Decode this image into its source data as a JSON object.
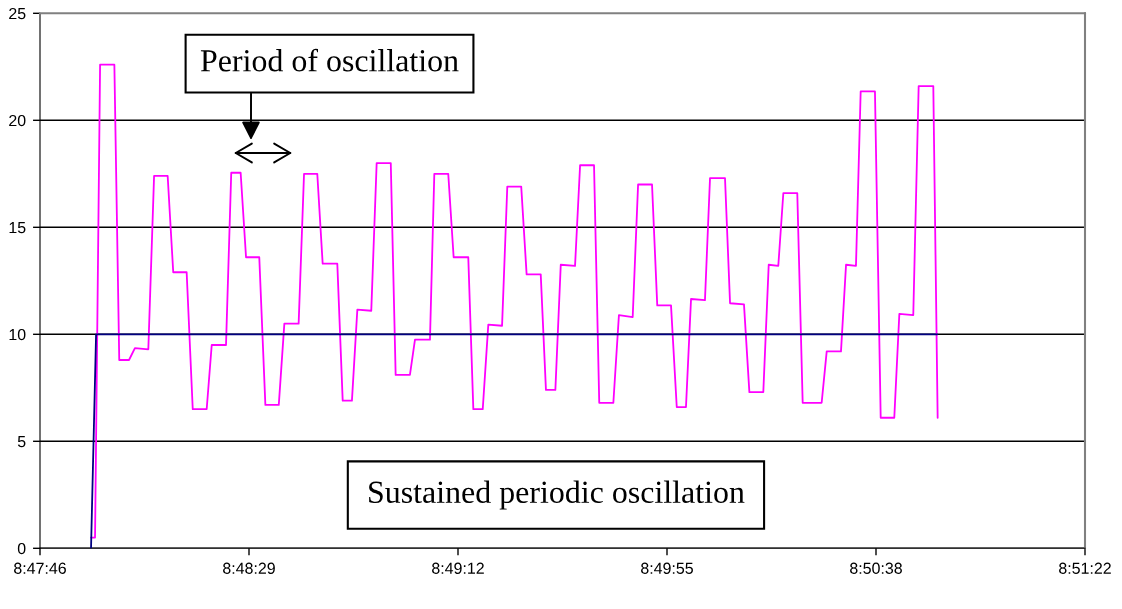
{
  "chart_data": {
    "type": "line",
    "series": [
      {
        "color": "#ff00ff",
        "x": [
          8.79893,
          8.79916,
          8.79945,
          8.80027,
          8.80055,
          8.80111,
          8.80145,
          8.80222,
          8.80255,
          8.80333,
          8.80365,
          8.80442,
          8.80477,
          8.80557,
          8.80586,
          8.80668,
          8.80698,
          8.80752,
          8.80783,
          8.80859,
          8.80894,
          8.80971,
          8.81003,
          8.81085,
          8.81116,
          8.81192,
          8.81223,
          8.81307,
          8.81338,
          8.81391,
          8.81422,
          8.81502,
          8.81533,
          8.81614,
          8.81642,
          8.81724,
          8.81753,
          8.81839,
          8.81864,
          8.81944,
          8.81975,
          8.82059,
          8.82088,
          8.82142,
          8.82174,
          8.82253,
          8.82283,
          8.82363,
          8.82394,
          8.82475,
          8.82505,
          8.82559,
          8.8259,
          8.82672,
          8.82701,
          8.82781,
          8.82811,
          8.82892,
          8.82924,
          8.83003,
          8.83034,
          8.83114,
          8.83144,
          8.83223,
          8.83256,
          8.83309,
          8.83338,
          8.83418,
          8.83447,
          8.83533,
          8.83562,
          8.83642,
          8.83673,
          8.83753,
          8.83784,
          8.83839,
          8.83868,
          8.83948,
          8.83979,
          8.84088,
          8.84117,
          8.84199,
          8.84228,
          8.84285,
          8.84312,
          8.84394,
          8.84427,
          8.84505,
          8.84534,
          8.84614,
          8.84645,
          8.84729,
          8.84754
        ],
        "values": [
          0.5,
          0.5,
          22.6,
          22.6,
          8.8,
          8.8,
          9.35,
          9.3,
          17.4,
          17.4,
          12.9,
          12.9,
          6.5,
          6.5,
          9.5,
          9.5,
          17.55,
          17.55,
          13.6,
          13.6,
          6.7,
          6.7,
          10.5,
          10.5,
          17.5,
          17.5,
          13.3,
          13.3,
          6.9,
          6.9,
          11.15,
          11.1,
          18.0,
          18.0,
          8.1,
          8.1,
          9.75,
          9.75,
          17.5,
          17.5,
          13.6,
          13.6,
          6.5,
          6.5,
          10.45,
          10.4,
          16.9,
          16.9,
          12.8,
          12.8,
          7.4,
          7.4,
          13.25,
          13.2,
          17.9,
          17.9,
          6.8,
          6.8,
          10.9,
          10.8,
          17.0,
          17.0,
          11.35,
          11.35,
          6.6,
          6.6,
          11.65,
          11.6,
          17.3,
          17.3,
          11.45,
          11.4,
          7.3,
          7.3,
          13.25,
          13.2,
          16.6,
          16.6,
          6.8,
          6.8,
          9.2,
          9.2,
          13.25,
          13.2,
          21.35,
          21.35,
          6.1,
          6.1,
          10.95,
          10.9,
          21.6,
          21.6,
          6.1
        ]
      },
      {
        "color": "#000080",
        "x": [
          8.79893,
          8.79922,
          8.84752
        ],
        "values": [
          0,
          10,
          10
        ]
      }
    ],
    "xlim": [
      8.796,
      8.856
    ],
    "xticks": [
      {
        "value": 8.796,
        "label": "8:47:46"
      },
      {
        "value": 8.808,
        "label": "8:48:29"
      },
      {
        "value": 8.82,
        "label": "8:49:12"
      },
      {
        "value": 8.832,
        "label": "8:49:55"
      },
      {
        "value": 8.844,
        "label": "8:50:38"
      },
      {
        "value": 8.856,
        "label": "8:51:22"
      }
    ],
    "ylim": [
      0,
      25
    ],
    "yticks": [
      0,
      5,
      10,
      15,
      20,
      25
    ],
    "grid": "y",
    "annotations": [
      "Period of oscillation",
      "Sustained periodic oscillation"
    ]
  }
}
